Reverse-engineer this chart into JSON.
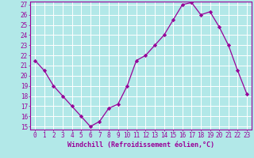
{
  "x": [
    0,
    1,
    2,
    3,
    4,
    5,
    6,
    7,
    8,
    9,
    10,
    11,
    12,
    13,
    14,
    15,
    16,
    17,
    18,
    19,
    20,
    21,
    22,
    23
  ],
  "y": [
    21.5,
    20.5,
    19.0,
    18.0,
    17.0,
    16.0,
    15.0,
    15.5,
    16.8,
    17.2,
    19.0,
    21.5,
    22.0,
    23.0,
    24.0,
    25.5,
    27.0,
    27.2,
    26.0,
    26.3,
    24.8,
    23.0,
    20.5,
    18.2
  ],
  "line_color": "#990099",
  "marker": "D",
  "marker_size": 2.2,
  "background_color": "#b2e8e8",
  "grid_color": "#ffffff",
  "xlabel": "Windchill (Refroidissement éolien,°C)",
  "xlabel_color": "#990099",
  "ylim_min": 15,
  "ylim_max": 27,
  "yticks": [
    15,
    16,
    17,
    18,
    19,
    20,
    21,
    22,
    23,
    24,
    25,
    26,
    27
  ],
  "xticks": [
    0,
    1,
    2,
    3,
    4,
    5,
    6,
    7,
    8,
    9,
    10,
    11,
    12,
    13,
    14,
    15,
    16,
    17,
    18,
    19,
    20,
    21,
    22,
    23
  ],
  "tick_color": "#990099",
  "spine_color": "#990099",
  "tick_fontsize": 5.5,
  "xlabel_fontsize": 6.0
}
